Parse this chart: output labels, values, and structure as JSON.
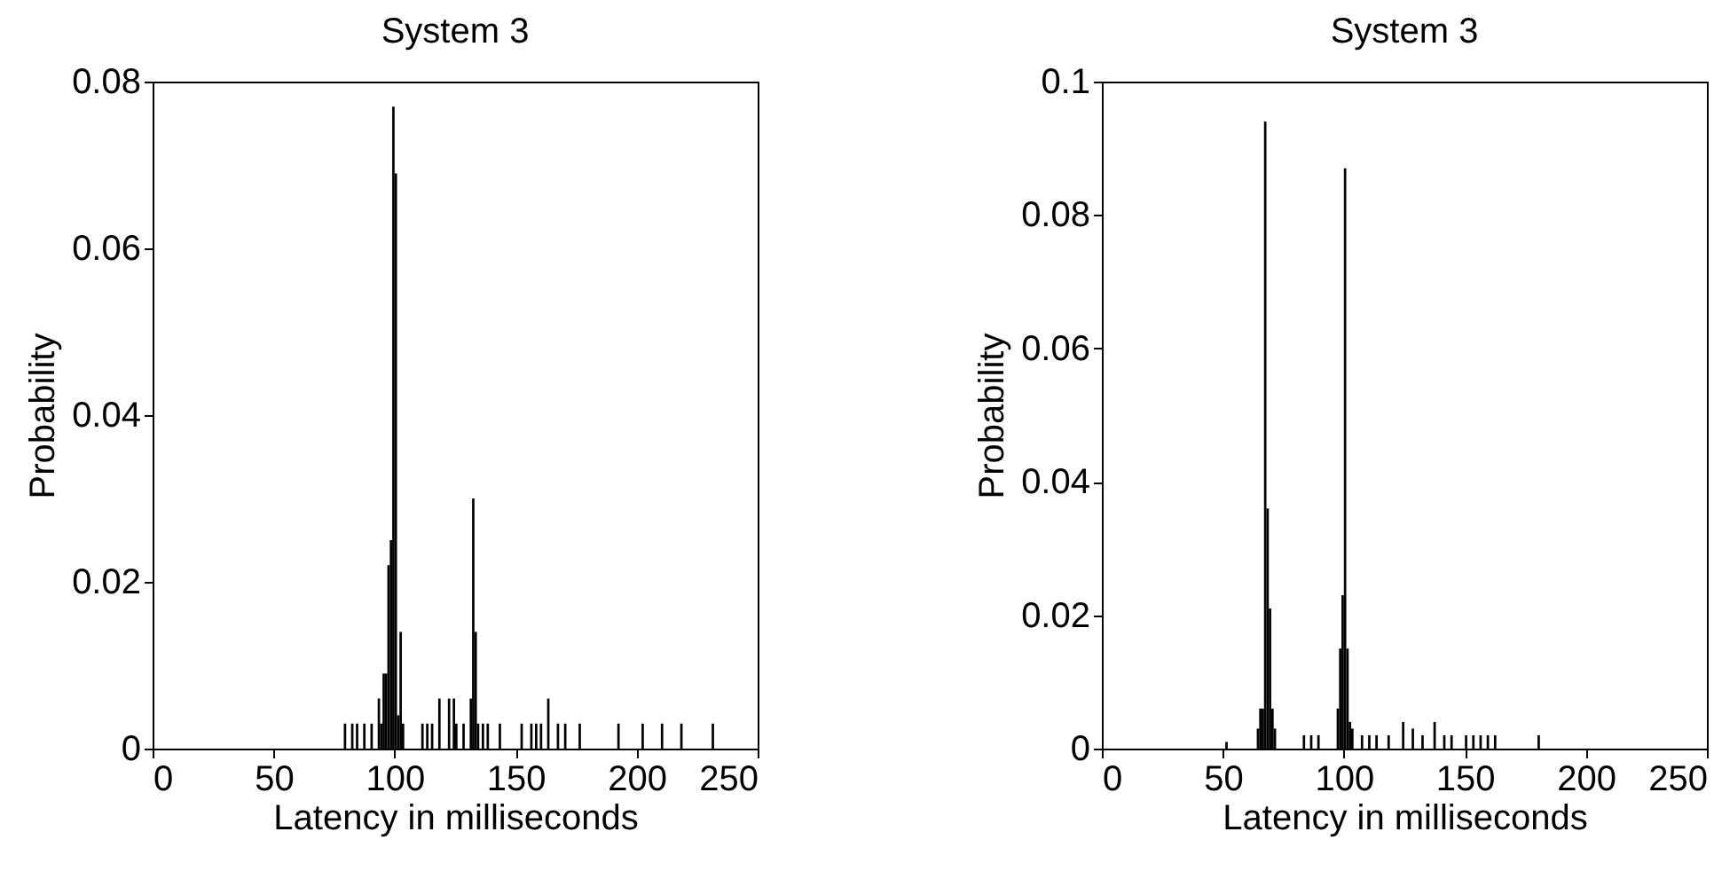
{
  "chart_data": [
    {
      "type": "histogram",
      "title": "System 3",
      "xlabel": "Latency in milliseconds",
      "ylabel": "Probability",
      "color": "#000000",
      "xlim": [
        0,
        250
      ],
      "xticks": [
        0,
        50,
        100,
        150,
        200,
        250
      ],
      "ylim": [
        0,
        0.08
      ],
      "yticks": [
        0,
        0.02,
        0.04,
        0.06,
        0.08
      ],
      "bins": [
        79,
        80,
        82,
        83,
        84,
        85,
        87,
        88,
        90,
        91,
        93,
        94,
        95,
        96,
        97,
        98,
        99,
        100,
        101,
        102,
        103,
        104,
        111,
        112,
        113,
        114,
        115,
        116,
        118,
        119,
        122,
        123,
        124,
        125,
        126,
        128,
        129,
        131,
        132,
        133,
        134,
        135,
        136,
        137,
        138,
        139,
        143,
        144,
        152,
        153,
        156,
        157,
        158,
        159,
        160,
        161,
        163,
        164,
        167,
        168,
        170,
        171,
        176,
        177,
        192,
        193,
        202,
        203,
        210,
        211,
        218,
        219,
        231,
        232
      ],
      "values": [
        0.003,
        0,
        0.003,
        0,
        0.003,
        0,
        0.003,
        0,
        0.003,
        0,
        0.006,
        0.003,
        0.009,
        0.009,
        0.022,
        0.025,
        0.077,
        0.069,
        0.004,
        0.014,
        0.003,
        0,
        0.003,
        0,
        0.003,
        0,
        0.003,
        0,
        0.006,
        0,
        0.006,
        0,
        0.006,
        0.003,
        0,
        0.003,
        0,
        0.006,
        0.03,
        0.014,
        0.003,
        0,
        0.003,
        0,
        0.003,
        0,
        0.003,
        0,
        0.003,
        0,
        0.003,
        0,
        0.003,
        0,
        0.003,
        0,
        0.006,
        0,
        0.003,
        0,
        0.003,
        0,
        0.003,
        0,
        0.003,
        0,
        0.003,
        0,
        0.003,
        0,
        0.003,
        0,
        0.003
      ]
    },
    {
      "type": "histogram",
      "title": "System 3",
      "xlabel": "Latency in milliseconds",
      "ylabel": "Probability",
      "color": "#000000",
      "xlim": [
        0,
        250
      ],
      "xticks": [
        0,
        50,
        100,
        150,
        200,
        250
      ],
      "ylim": [
        0,
        0.1
      ],
      "yticks": [
        0,
        0.02,
        0.04,
        0.06,
        0.08,
        0.1
      ],
      "bins": [
        51,
        52,
        64,
        65,
        66,
        67,
        68,
        69,
        70,
        71,
        72,
        83,
        84,
        86,
        87,
        89,
        90,
        97,
        98,
        99,
        100,
        101,
        102,
        103,
        104,
        107,
        108,
        110,
        111,
        113,
        114,
        118,
        119,
        124,
        125,
        128,
        129,
        132,
        133,
        137,
        138,
        141,
        142,
        144,
        145,
        150,
        151,
        153,
        154,
        156,
        157,
        159,
        160,
        162,
        163,
        180,
        181
      ],
      "values": [
        0.001,
        0,
        0.003,
        0.006,
        0.006,
        0.094,
        0.036,
        0.021,
        0.006,
        0.003,
        0,
        0.002,
        0,
        0.002,
        0,
        0.002,
        0,
        0.006,
        0.015,
        0.023,
        0.087,
        0.015,
        0.004,
        0.003,
        0,
        0.002,
        0,
        0.002,
        0,
        0.002,
        0,
        0.002,
        0,
        0.004,
        0,
        0.003,
        0,
        0.002,
        0,
        0.004,
        0,
        0.002,
        0,
        0.002,
        0,
        0.002,
        0,
        0.002,
        0,
        0.002,
        0,
        0.002,
        0,
        0.002,
        0,
        0.002
      ]
    }
  ]
}
